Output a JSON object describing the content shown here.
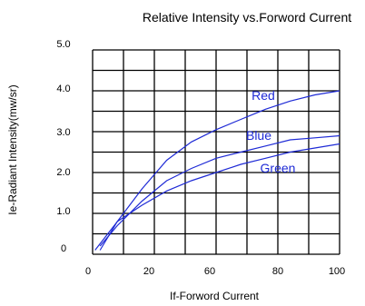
{
  "chart_data": {
    "type": "line",
    "title": "Relative Intensity vs.Forword Current",
    "xlabel": "If-Forword Current",
    "ylabel": "Ie-Radiant Intensity(mw/sr)",
    "xlim": [
      0,
      100
    ],
    "ylim": [
      0,
      5.0
    ],
    "x_tick_labels": [
      "0",
      "20",
      "60",
      "80",
      "100"
    ],
    "y_tick_labels": [
      "0",
      "1.0",
      "2.0",
      "3.0",
      "4.0",
      "5.0"
    ],
    "grid": true,
    "series": [
      {
        "name": "Red",
        "color": "#1f2bd6",
        "x": [
          3,
          10,
          20,
          30,
          40,
          50,
          60,
          70,
          80,
          90,
          100
        ],
        "y": [
          0.1,
          0.8,
          1.6,
          2.3,
          2.75,
          3.05,
          3.3,
          3.55,
          3.75,
          3.9,
          4.0
        ]
      },
      {
        "name": "Blue",
        "color": "#1f2bd6",
        "x": [
          3,
          10,
          20,
          30,
          40,
          50,
          60,
          70,
          80,
          90,
          100
        ],
        "y": [
          0.2,
          0.7,
          1.3,
          1.8,
          2.1,
          2.35,
          2.5,
          2.65,
          2.8,
          2.85,
          2.9
        ]
      },
      {
        "name": "Green",
        "color": "#1f2bd6",
        "x": [
          1,
          10,
          20,
          30,
          40,
          50,
          60,
          70,
          80,
          90,
          100
        ],
        "y": [
          0.1,
          0.8,
          1.2,
          1.55,
          1.8,
          2.0,
          2.2,
          2.35,
          2.5,
          2.6,
          2.7
        ]
      }
    ]
  }
}
